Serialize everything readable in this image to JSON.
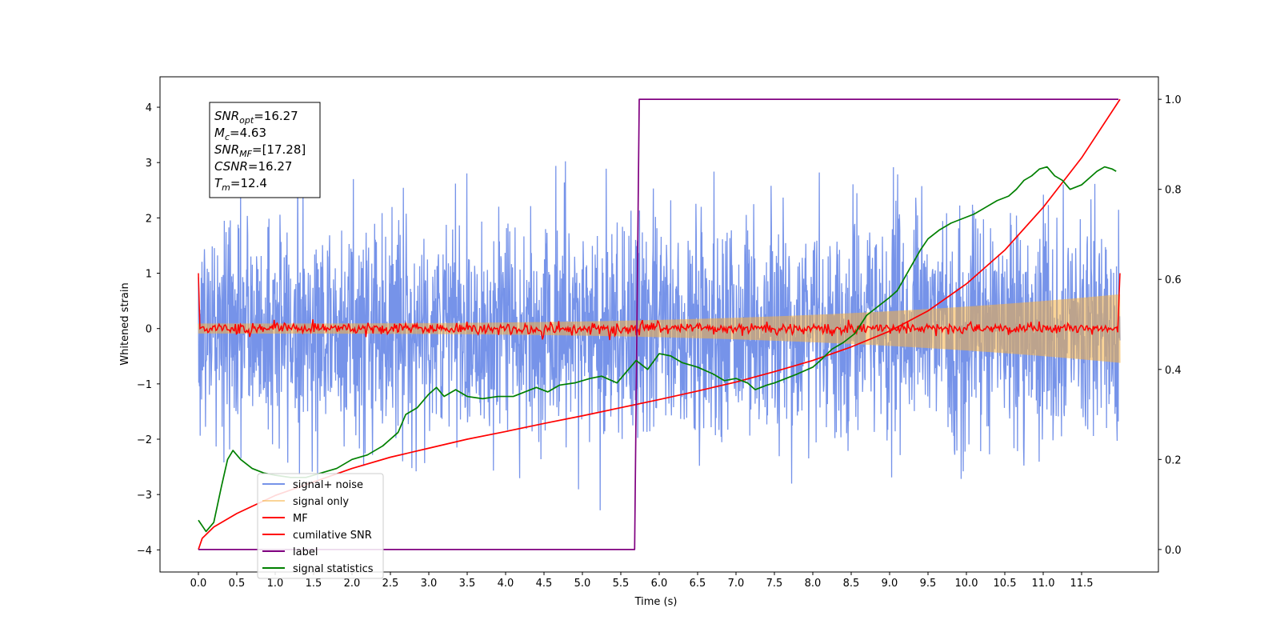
{
  "chart_data": {
    "type": "line",
    "xlabel": "Time (s)",
    "ylabel": "Whitened strain",
    "xlim": [
      -0.5,
      12.5
    ],
    "ylim": [
      -4.4,
      4.55
    ],
    "y2lim": [
      -0.05,
      1.05
    ],
    "x_ticks": [
      0.0,
      0.5,
      1.0,
      1.5,
      2.0,
      2.5,
      3.0,
      3.5,
      4.0,
      4.5,
      5.0,
      5.5,
      6.0,
      6.5,
      7.0,
      7.5,
      8.0,
      8.5,
      9.0,
      9.5,
      10.0,
      10.5,
      11.0,
      11.5
    ],
    "x_tick_labels": [
      "0.0",
      "0.5",
      "1.0",
      "1.5",
      "2.0",
      "2.5",
      "3.0",
      "3.5",
      "4.0",
      "4.5",
      "5.0",
      "5.5",
      "6.0",
      "6.5",
      "7.0",
      "7.5",
      "8.0",
      "8.5",
      "9.0",
      "9.5",
      "10.0",
      "10.5",
      "11.0",
      "11.5"
    ],
    "y_ticks": [
      4,
      3,
      2,
      1,
      0,
      -1,
      -2,
      -3,
      -4
    ],
    "y_tick_labels": [
      "4",
      "3",
      "2",
      "1",
      "0",
      "−1",
      "−2",
      "−3",
      "−4"
    ],
    "y2_ticks": [
      1.0,
      0.8,
      0.6,
      0.4,
      0.2,
      0.0
    ],
    "y2_tick_labels": [
      "1.0",
      "0.8",
      "0.6",
      "0.4",
      "0.2",
      "0.0"
    ],
    "duration": 12.0,
    "grid": false,
    "legend_position": "lower-left",
    "series": [
      {
        "name": "signal+ noise",
        "axis": "left",
        "color": "#4169e1",
        "kind": "noise",
        "sigma": 1.0,
        "max": 4.15,
        "min": -3.9
      },
      {
        "name": "signal only",
        "axis": "left",
        "color": "#f5b041",
        "kind": "chirp",
        "amp_start": 0.09,
        "amp_end": 0.62
      },
      {
        "name": "MF",
        "axis": "left",
        "color": "#ff0000",
        "kind": "mf",
        "start_value": 1.0,
        "end_value": 1.0,
        "jitter": 0.05
      },
      {
        "name": "cumilative SNR",
        "axis": "right",
        "color": "#ff0000",
        "kind": "line",
        "points": [
          [
            0.0,
            0.0
          ],
          [
            0.05,
            0.025
          ],
          [
            0.2,
            0.05
          ],
          [
            0.5,
            0.08
          ],
          [
            1.0,
            0.12
          ],
          [
            1.5,
            0.15
          ],
          [
            2.0,
            0.18
          ],
          [
            2.5,
            0.205
          ],
          [
            3.0,
            0.225
          ],
          [
            3.5,
            0.245
          ],
          [
            4.0,
            0.262
          ],
          [
            4.5,
            0.28
          ],
          [
            5.0,
            0.297
          ],
          [
            5.5,
            0.315
          ],
          [
            6.0,
            0.333
          ],
          [
            6.5,
            0.352
          ],
          [
            7.0,
            0.372
          ],
          [
            7.5,
            0.395
          ],
          [
            8.0,
            0.42
          ],
          [
            8.5,
            0.45
          ],
          [
            9.0,
            0.485
          ],
          [
            9.5,
            0.53
          ],
          [
            10.0,
            0.59
          ],
          [
            10.5,
            0.665
          ],
          [
            11.0,
            0.76
          ],
          [
            11.5,
            0.87
          ],
          [
            12.0,
            1.0
          ]
        ]
      },
      {
        "name": "label",
        "axis": "right",
        "color": "#800080",
        "kind": "line",
        "points": [
          [
            0.0,
            0.0
          ],
          [
            5.68,
            0.0
          ],
          [
            5.74,
            1.0
          ],
          [
            11.98,
            1.0
          ]
        ]
      },
      {
        "name": "signal statistics",
        "axis": "right",
        "color": "#008000",
        "kind": "line",
        "points": [
          [
            0.0,
            0.065
          ],
          [
            0.1,
            0.04
          ],
          [
            0.2,
            0.06
          ],
          [
            0.3,
            0.14
          ],
          [
            0.38,
            0.2
          ],
          [
            0.45,
            0.22
          ],
          [
            0.55,
            0.2
          ],
          [
            0.7,
            0.18
          ],
          [
            0.85,
            0.17
          ],
          [
            1.0,
            0.165
          ],
          [
            1.2,
            0.16
          ],
          [
            1.4,
            0.16
          ],
          [
            1.6,
            0.17
          ],
          [
            1.8,
            0.18
          ],
          [
            2.0,
            0.2
          ],
          [
            2.2,
            0.21
          ],
          [
            2.4,
            0.23
          ],
          [
            2.5,
            0.245
          ],
          [
            2.6,
            0.26
          ],
          [
            2.7,
            0.3
          ],
          [
            2.85,
            0.315
          ],
          [
            3.0,
            0.345
          ],
          [
            3.1,
            0.36
          ],
          [
            3.2,
            0.34
          ],
          [
            3.35,
            0.355
          ],
          [
            3.5,
            0.34
          ],
          [
            3.7,
            0.335
          ],
          [
            3.9,
            0.34
          ],
          [
            4.1,
            0.34
          ],
          [
            4.25,
            0.35
          ],
          [
            4.4,
            0.36
          ],
          [
            4.55,
            0.35
          ],
          [
            4.7,
            0.365
          ],
          [
            4.9,
            0.37
          ],
          [
            5.1,
            0.38
          ],
          [
            5.25,
            0.385
          ],
          [
            5.45,
            0.37
          ],
          [
            5.6,
            0.4
          ],
          [
            5.7,
            0.42
          ],
          [
            5.85,
            0.4
          ],
          [
            6.0,
            0.435
          ],
          [
            6.15,
            0.43
          ],
          [
            6.3,
            0.415
          ],
          [
            6.5,
            0.405
          ],
          [
            6.7,
            0.39
          ],
          [
            6.85,
            0.375
          ],
          [
            7.0,
            0.38
          ],
          [
            7.15,
            0.37
          ],
          [
            7.25,
            0.355
          ],
          [
            7.4,
            0.365
          ],
          [
            7.5,
            0.37
          ],
          [
            7.65,
            0.38
          ],
          [
            7.8,
            0.39
          ],
          [
            8.0,
            0.405
          ],
          [
            8.1,
            0.42
          ],
          [
            8.25,
            0.445
          ],
          [
            8.4,
            0.46
          ],
          [
            8.55,
            0.48
          ],
          [
            8.7,
            0.52
          ],
          [
            8.85,
            0.54
          ],
          [
            9.0,
            0.56
          ],
          [
            9.1,
            0.575
          ],
          [
            9.25,
            0.62
          ],
          [
            9.4,
            0.665
          ],
          [
            9.5,
            0.69
          ],
          [
            9.65,
            0.71
          ],
          [
            9.8,
            0.725
          ],
          [
            9.95,
            0.735
          ],
          [
            10.1,
            0.745
          ],
          [
            10.25,
            0.76
          ],
          [
            10.4,
            0.775
          ],
          [
            10.55,
            0.785
          ],
          [
            10.65,
            0.8
          ],
          [
            10.75,
            0.82
          ],
          [
            10.85,
            0.83
          ],
          [
            10.95,
            0.845
          ],
          [
            11.05,
            0.85
          ],
          [
            11.15,
            0.83
          ],
          [
            11.25,
            0.82
          ],
          [
            11.35,
            0.8
          ],
          [
            11.5,
            0.81
          ],
          [
            11.6,
            0.825
          ],
          [
            11.7,
            0.84
          ],
          [
            11.8,
            0.85
          ],
          [
            11.9,
            0.845
          ],
          [
            11.95,
            0.84
          ]
        ]
      }
    ],
    "annotation": [
      {
        "sym": "SNR",
        "sub": "opt",
        "value": "=16.27"
      },
      {
        "sym": "M",
        "sub": "c",
        "value": "=4.63"
      },
      {
        "sym": "SNR",
        "sub": "MF",
        "value": "=[17.28]"
      },
      {
        "sym": "CSNR",
        "sub": "",
        "value": "=16.27"
      },
      {
        "sym": "T",
        "sub": "m",
        "value": "=12.4"
      }
    ]
  }
}
